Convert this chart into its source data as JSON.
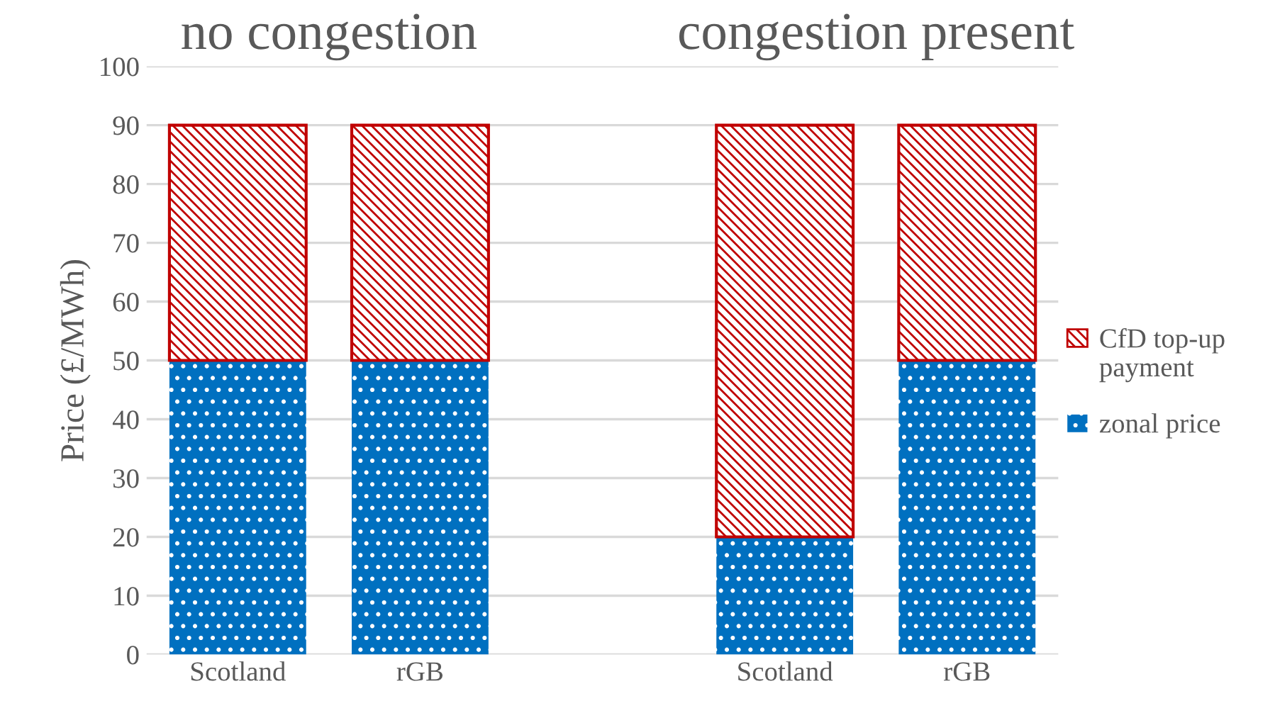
{
  "chart_data": {
    "type": "bar",
    "stacked": true,
    "ylabel": "Price (£/MWh)",
    "categories": [
      "Scotland",
      "rGB",
      null,
      "Scotland",
      "rGB"
    ],
    "series": [
      {
        "name": "zonal price",
        "color": "#0070c0",
        "values": [
          50,
          50,
          null,
          20,
          50
        ]
      },
      {
        "name": "CfD top-up payment",
        "color": "#c00000",
        "values": [
          40,
          40,
          null,
          70,
          40
        ]
      }
    ],
    "annotations": [
      "no congestion",
      "congestion present"
    ],
    "ylim": [
      0,
      100
    ],
    "yticks": [
      0,
      10,
      20,
      30,
      40,
      50,
      60,
      70,
      80,
      90,
      100
    ],
    "grid": "y",
    "legend": "right"
  }
}
